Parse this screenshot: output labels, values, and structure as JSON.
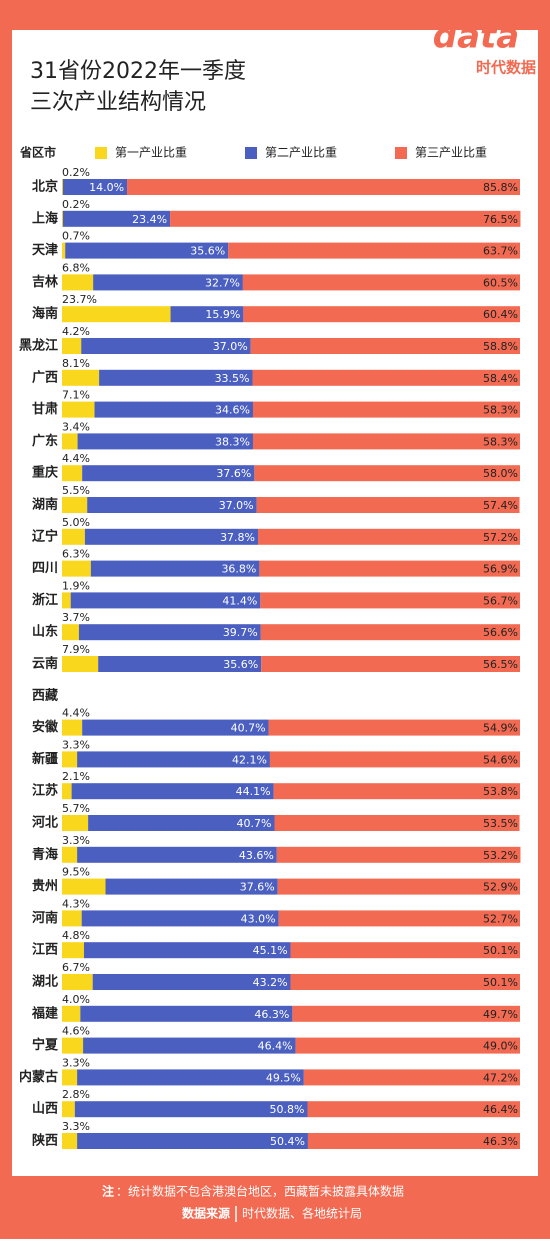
{
  "chart_data": {
    "type": "stacked-bar-horizontal",
    "title": [
      "31省份2022年一季度",
      "三次产业结构情况"
    ],
    "y_label": "省区市",
    "logo": "data",
    "brand": "时代数据",
    "xlim": [
      0,
      100
    ],
    "categories": [
      "北京",
      "上海",
      "天津",
      "吉林",
      "海南",
      "黑龙江",
      "广西",
      "甘肃",
      "广东",
      "重庆",
      "湖南",
      "辽宁",
      "四川",
      "浙江",
      "山东",
      "云南",
      "西藏",
      "安徽",
      "新疆",
      "江苏",
      "河北",
      "青海",
      "贵州",
      "河南",
      "江西",
      "湖北",
      "福建",
      "宁夏",
      "内蒙古",
      "山西",
      "陕西"
    ],
    "series": [
      {
        "name": "第一产业比重",
        "color": "#f9d71c",
        "values": [
          0.2,
          0.2,
          0.7,
          6.8,
          23.7,
          4.2,
          8.1,
          7.1,
          3.4,
          4.4,
          5.5,
          5.0,
          6.3,
          1.9,
          3.7,
          7.9,
          null,
          4.4,
          3.3,
          2.1,
          5.7,
          3.3,
          9.5,
          4.3,
          4.8,
          6.7,
          4.0,
          4.6,
          3.3,
          2.8,
          3.3
        ],
        "value_labels": [
          "0.2%",
          "0.2%",
          "0.7%",
          "6.8%",
          "23.7%",
          "4.2%",
          "8.1%",
          "7.1%",
          "3.4%",
          "4.4%",
          "5.5%",
          "5.0%",
          "6.3%",
          "1.9%",
          "3.7%",
          "7.9%",
          null,
          "4.4%",
          "3.3%",
          "2.1%",
          "5.7%",
          "3.3%",
          "9.5%",
          "4.3%",
          "4.8%",
          "6.7%",
          "4.0%",
          "4.6%",
          "3.3%",
          "2.8%",
          "3.3%"
        ]
      },
      {
        "name": "第二产业比重",
        "color": "#4a5fbf",
        "values": [
          14.0,
          23.4,
          35.6,
          32.7,
          15.9,
          37.0,
          33.5,
          34.6,
          38.3,
          37.6,
          37.0,
          37.8,
          36.8,
          41.4,
          39.7,
          35.6,
          null,
          40.7,
          42.1,
          44.1,
          40.7,
          43.6,
          37.6,
          43.0,
          45.1,
          43.2,
          46.3,
          46.4,
          49.5,
          50.8,
          50.4
        ],
        "value_labels": [
          "14.0%",
          "23.4%",
          "35.6%",
          "32.7%",
          "15.9%",
          "37.0%",
          "33.5%",
          "34.6%",
          "38.3%",
          "37.6%",
          "37.0%",
          "37.8%",
          "36.8%",
          "41.4%",
          "39.7%",
          "35.6%",
          null,
          "40.7%",
          "42.1%",
          "44.1%",
          "40.7%",
          "43.6%",
          "37.6%",
          "43.0%",
          "45.1%",
          "43.2%",
          "46.3%",
          "46.4%",
          "49.5%",
          "50.8%",
          "50.4%"
        ]
      },
      {
        "name": "第三产业比重",
        "color": "#f26a52",
        "values": [
          85.8,
          76.5,
          63.7,
          60.5,
          60.4,
          58.8,
          58.4,
          58.3,
          58.3,
          58.0,
          57.4,
          57.2,
          56.9,
          56.7,
          56.6,
          56.5,
          null,
          54.9,
          54.6,
          53.8,
          53.5,
          53.2,
          52.9,
          52.7,
          50.1,
          50.1,
          49.7,
          49.0,
          47.2,
          46.4,
          46.3
        ],
        "value_labels": [
          "85.8%",
          "76.5%",
          "63.7%",
          "60.5%",
          "60.4%",
          "58.8%",
          "58.4%",
          "58.3%",
          "58.3%",
          "58.0%",
          "57.4%",
          "57.2%",
          "56.9%",
          "56.7%",
          "56.6%",
          "56.5%",
          null,
          "54.9%",
          "54.6%",
          "53.8%",
          "53.5%",
          "53.2%",
          "52.9%",
          "52.7%",
          "50.1%",
          "50.1%",
          "49.7%",
          "49.0%",
          "47.2%",
          "46.4%",
          "46.3%"
        ]
      }
    ]
  },
  "footer": {
    "note_label": "注",
    "note": "：统计数据不包含港澳台地区，西藏暂未披露具体数据",
    "source_label": "数据来源",
    "source": "时代数据、各地统计局"
  }
}
